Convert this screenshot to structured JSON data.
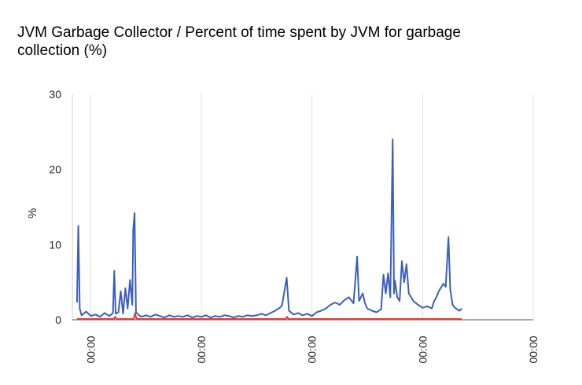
{
  "chart_data": {
    "type": "line",
    "title": "JVM Garbage Collector / Percent of time spent by JVM for garbage collection (%)",
    "xlabel": "",
    "ylabel": "%",
    "ylim": [
      0,
      30
    ],
    "xlim": [
      0,
      100
    ],
    "y_ticks": [
      "0",
      "10",
      "20",
      "30"
    ],
    "x_ticks": [
      {
        "x": 4,
        "label": "00:00"
      },
      {
        "x": 28,
        "label": "00:00"
      },
      {
        "x": 52,
        "label": "00:00"
      },
      {
        "x": 76,
        "label": "00:00"
      },
      {
        "x": 100,
        "label": "00:00"
      }
    ],
    "grid": true,
    "legend": "none",
    "series": [
      {
        "color": "#3b5fc0",
        "points": [
          [
            1,
            2.3
          ],
          [
            1.3,
            12.5
          ],
          [
            1.6,
            1.5
          ],
          [
            2,
            0.6
          ],
          [
            3,
            1.1
          ],
          [
            4,
            0.5
          ],
          [
            5,
            0.7
          ],
          [
            6,
            0.4
          ],
          [
            7,
            0.9
          ],
          [
            8,
            0.5
          ],
          [
            8.8,
            0.9
          ],
          [
            9.1,
            6.5
          ],
          [
            9.4,
            0.8
          ],
          [
            10,
            1.0
          ],
          [
            10.5,
            3.8
          ],
          [
            11,
            0.8
          ],
          [
            11.5,
            4.2
          ],
          [
            12,
            1.5
          ],
          [
            12.5,
            5.3
          ],
          [
            13,
            2.0
          ],
          [
            13.2,
            12.0
          ],
          [
            13.5,
            14.2
          ],
          [
            13.8,
            1.0
          ],
          [
            14.5,
            0.6
          ],
          [
            15,
            0.4
          ],
          [
            16,
            0.6
          ],
          [
            17,
            0.4
          ],
          [
            18,
            0.7
          ],
          [
            19,
            0.5
          ],
          [
            20,
            0.3
          ],
          [
            21,
            0.6
          ],
          [
            22,
            0.4
          ],
          [
            23,
            0.5
          ],
          [
            24,
            0.4
          ],
          [
            25,
            0.6
          ],
          [
            26,
            0.3
          ],
          [
            27,
            0.5
          ],
          [
            28,
            0.4
          ],
          [
            29,
            0.6
          ],
          [
            30,
            0.3
          ],
          [
            31,
            0.5
          ],
          [
            32,
            0.4
          ],
          [
            33,
            0.6
          ],
          [
            34,
            0.5
          ],
          [
            35,
            0.3
          ],
          [
            36,
            0.5
          ],
          [
            37,
            0.4
          ],
          [
            38,
            0.6
          ],
          [
            39,
            0.5
          ],
          [
            40,
            0.6
          ],
          [
            41,
            0.8
          ],
          [
            42,
            0.6
          ],
          [
            43,
            0.9
          ],
          [
            44,
            1.2
          ],
          [
            45,
            1.6
          ],
          [
            45.5,
            1.9
          ],
          [
            46.5,
            5.6
          ],
          [
            47,
            1.2
          ],
          [
            48,
            0.7
          ],
          [
            49,
            0.9
          ],
          [
            50,
            0.6
          ],
          [
            51,
            0.8
          ],
          [
            52,
            0.5
          ],
          [
            53,
            1.0
          ],
          [
            54,
            1.2
          ],
          [
            55,
            1.5
          ],
          [
            56,
            2.0
          ],
          [
            57,
            2.3
          ],
          [
            58,
            2.0
          ],
          [
            59,
            2.6
          ],
          [
            60,
            3.0
          ],
          [
            61,
            2.2
          ],
          [
            61.8,
            8.4
          ],
          [
            62.2,
            2.5
          ],
          [
            63,
            3.5
          ],
          [
            63.5,
            2.2
          ],
          [
            64,
            1.5
          ],
          [
            65,
            1.2
          ],
          [
            66,
            1.0
          ],
          [
            67,
            1.4
          ],
          [
            67.5,
            6.0
          ],
          [
            68,
            3.5
          ],
          [
            68.5,
            6.2
          ],
          [
            69,
            3.0
          ],
          [
            69.5,
            24.0
          ],
          [
            69.8,
            3.5
          ],
          [
            70,
            5.2
          ],
          [
            70.5,
            3.0
          ],
          [
            71,
            2.5
          ],
          [
            71.5,
            7.8
          ],
          [
            72,
            5.0
          ],
          [
            72.5,
            7.4
          ],
          [
            73,
            3.5
          ],
          [
            74,
            2.5
          ],
          [
            75,
            2.0
          ],
          [
            76,
            1.6
          ],
          [
            77,
            1.8
          ],
          [
            78,
            1.5
          ],
          [
            78.5,
            2.5
          ],
          [
            79,
            3.0
          ],
          [
            79.5,
            3.8
          ],
          [
            80,
            4.3
          ],
          [
            80.5,
            4.8
          ],
          [
            81,
            4.4
          ],
          [
            81.6,
            11.0
          ],
          [
            82,
            4.0
          ],
          [
            82.5,
            2.0
          ],
          [
            83,
            1.6
          ],
          [
            84,
            1.2
          ],
          [
            84.5,
            1.5
          ]
        ]
      },
      {
        "color": "#e53935",
        "points": [
          [
            1,
            0.1
          ],
          [
            9,
            0.1
          ],
          [
            9.3,
            0.4
          ],
          [
            9.6,
            0.1
          ],
          [
            13.3,
            0.1
          ],
          [
            13.6,
            0.9
          ],
          [
            13.9,
            0.1
          ],
          [
            46.3,
            0.1
          ],
          [
            46.6,
            0.4
          ],
          [
            46.9,
            0.1
          ],
          [
            84.5,
            0.1
          ]
        ]
      }
    ]
  }
}
